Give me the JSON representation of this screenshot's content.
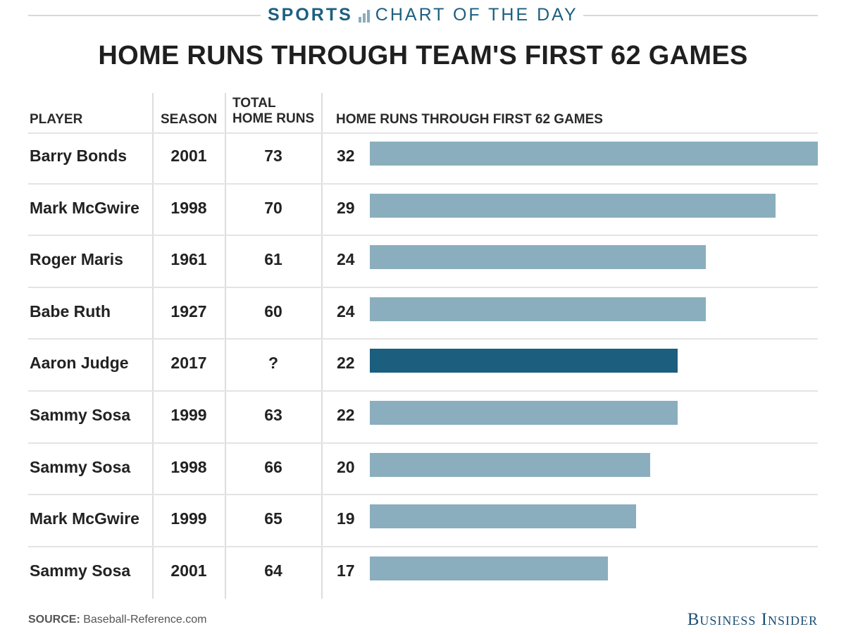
{
  "kicker": {
    "sports": "SPORTS",
    "chart_of_the_day": "CHART OF THE DAY"
  },
  "header": {
    "title": "HOME RUNS THROUGH TEAM'S FIRST 62 GAMES"
  },
  "columns": {
    "player": "PLAYER",
    "season": "SEASON",
    "total_line1": "TOTAL",
    "total_line2": "HOME RUNS",
    "bars": "HOME RUNS THROUGH FIRST 62 GAMES"
  },
  "colors": {
    "bar": "#8aaebd",
    "highlight": "#1b5e7e",
    "brand": "#1c5f7f"
  },
  "chart_data": {
    "type": "bar",
    "title": "HOME RUNS THROUGH TEAM'S FIRST 62 GAMES",
    "xlabel": "HOME RUNS THROUGH FIRST 62 GAMES",
    "ylabel": "",
    "xlim": [
      0,
      32
    ],
    "categories": [
      "Barry Bonds",
      "Mark McGwire",
      "Roger Maris",
      "Babe Ruth",
      "Aaron Judge",
      "Sammy Sosa",
      "Sammy Sosa",
      "Mark McGwire",
      "Sammy Sosa"
    ],
    "rows": [
      {
        "player": "Barry Bonds",
        "season": "2001",
        "total": "73",
        "hr": 32,
        "highlight": false
      },
      {
        "player": "Mark McGwire",
        "season": "1998",
        "total": "70",
        "hr": 29,
        "highlight": false
      },
      {
        "player": "Roger Maris",
        "season": "1961",
        "total": "61",
        "hr": 24,
        "highlight": false
      },
      {
        "player": "Babe Ruth",
        "season": "1927",
        "total": "60",
        "hr": 24,
        "highlight": false
      },
      {
        "player": "Aaron Judge",
        "season": "2017",
        "total": "?",
        "hr": 22,
        "highlight": true
      },
      {
        "player": "Sammy Sosa",
        "season": "1999",
        "total": "63",
        "hr": 22,
        "highlight": false
      },
      {
        "player": "Sammy Sosa",
        "season": "1998",
        "total": "66",
        "hr": 20,
        "highlight": false
      },
      {
        "player": "Mark McGwire",
        "season": "1999",
        "total": "65",
        "hr": 19,
        "highlight": false
      },
      {
        "player": "Sammy Sosa",
        "season": "2001",
        "total": "64",
        "hr": 17,
        "highlight": false
      }
    ],
    "grid": false,
    "legend": "none"
  },
  "footer": {
    "source_label": "SOURCE:",
    "source_text": "Baseball-Reference.com",
    "logo": "Business Insider"
  }
}
